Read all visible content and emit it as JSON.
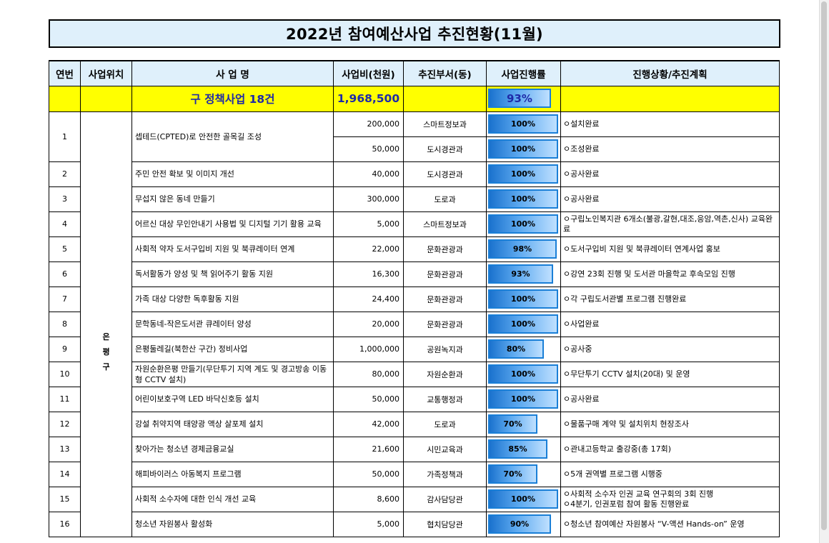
{
  "title": "2022년 참여예산사업 추진현황(11월)",
  "headers": {
    "no": "연번",
    "location": "사업위치",
    "name": "사 업 명",
    "amount": "사업비(천원)",
    "dept": "추진부서(동)",
    "progress": "사업진행률",
    "status": "진행상황/추진계획"
  },
  "summary": {
    "title": "구 정책사업 18건",
    "amount": "1,968,500",
    "progress_label": "93%",
    "progress": 0.93
  },
  "location_label": "은\n평\n구",
  "rows": [
    {
      "no": "1",
      "name": "셉테드(CPTED)로 안전한 골목길 조성",
      "amount": "200,000",
      "dept": "스마트정보과",
      "progress_label": "100%",
      "progress": 1.0,
      "status": "ㅇ설치완료"
    },
    {
      "no": "",
      "name": "",
      "amount": "50,000",
      "dept": "도시경관과",
      "progress_label": "100%",
      "progress": 1.0,
      "status": "ㅇ조성완료"
    },
    {
      "no": "2",
      "name": "주민 안전 확보 및 이미지 개선",
      "amount": "40,000",
      "dept": "도시경관과",
      "progress_label": "100%",
      "progress": 1.0,
      "status": "ㅇ공사완료"
    },
    {
      "no": "3",
      "name": "무섭지 않은 동네 만들기",
      "amount": "300,000",
      "dept": "도로과",
      "progress_label": "100%",
      "progress": 1.0,
      "status": "ㅇ공사완료"
    },
    {
      "no": "4",
      "name": "어르신 대상 무인안내기 사용법 및 디지털 기기 활용 교육",
      "amount": "5,000",
      "dept": "스마트정보과",
      "progress_label": "100%",
      "progress": 1.0,
      "status": "ㅇ구립노인복지관 6개소(불광,갈현,대조,응암,역촌,신사) 교육완료"
    },
    {
      "no": "5",
      "name": "사회적 약자 도서구입비 지원 및 북큐레이터 연계",
      "amount": "22,000",
      "dept": "문화관광과",
      "progress_label": "98%",
      "progress": 0.98,
      "status": "ㅇ도서구입비 지원 및 북큐레이터 연계사업 홍보"
    },
    {
      "no": "6",
      "name": "독서활동가 양성 및 책 읽어주기 활동 지원",
      "amount": "16,300",
      "dept": "문화관광과",
      "progress_label": "93%",
      "progress": 0.93,
      "status": "ㅇ강연 23회 진행 및 도서관 마을학교 후속모임 진행"
    },
    {
      "no": "7",
      "name": "가족 대상 다양한 독후활동 지원",
      "amount": "24,400",
      "dept": "문화관광과",
      "progress_label": "100%",
      "progress": 1.0,
      "status": "ㅇ각 구립도서관별 프로그램 진행완료"
    },
    {
      "no": "8",
      "name": "문학동네-작은도서관 큐레이터 양성",
      "amount": "20,000",
      "dept": "문화관광과",
      "progress_label": "100%",
      "progress": 1.0,
      "status": "ㅇ사업완료"
    },
    {
      "no": "9",
      "name": "은평둘레길(북한산 구간) 정비사업",
      "amount": "1,000,000",
      "dept": "공원녹지과",
      "progress_label": "80%",
      "progress": 0.8,
      "status": "ㅇ공사중"
    },
    {
      "no": "10",
      "name": "자원순환은평 만들기(무단투기 지역 계도 및 경고방송 이동형 CCTV 설치)",
      "amount": "80,000",
      "dept": "자원순환과",
      "progress_label": "100%",
      "progress": 1.0,
      "status": "ㅇ무단투기 CCTV 설치(20대) 및 운영"
    },
    {
      "no": "11",
      "name": "어린이보호구역 LED 바닥신호등 설치",
      "amount": "50,000",
      "dept": "교통행정과",
      "progress_label": "100%",
      "progress": 1.0,
      "status": "ㅇ공사완료"
    },
    {
      "no": "12",
      "name": "강설 취약지역 태양광 액상 살포제 설치",
      "amount": "42,000",
      "dept": "도로과",
      "progress_label": "70%",
      "progress": 0.7,
      "status": "ㅇ물품구매 계약 및 설치위치 현장조사"
    },
    {
      "no": "13",
      "name": "찾아가는 청소년 경제금융교실",
      "amount": "21,600",
      "dept": "시민교육과",
      "progress_label": "85%",
      "progress": 0.85,
      "status": "ㅇ관내고등학교 출강중(총 17회)"
    },
    {
      "no": "14",
      "name": "해피바이러스 아동복지 프로그램",
      "amount": "50,000",
      "dept": "가족정책과",
      "progress_label": "70%",
      "progress": 0.7,
      "status": "ㅇ5개 권역별 프로그램 시행중"
    },
    {
      "no": "15",
      "name": "사회적 소수자에 대한 인식 개선 교육",
      "amount": "8,600",
      "dept": "감사담당관",
      "progress_label": "100%",
      "progress": 1.0,
      "status": "ㅇ사회적 소수자 인권 교육 연구회의 3회 진행\nㅇ4분기, 인권포럼 참여 활동 진행완료"
    },
    {
      "no": "16",
      "name": "청소년 자원봉사 활성화",
      "amount": "5,000",
      "dept": "협치담당관",
      "progress_label": "90%",
      "progress": 0.9,
      "status": "ㅇ청소년 참여예산 자원봉사 “V-액션 Hands-on” 운영"
    }
  ]
}
